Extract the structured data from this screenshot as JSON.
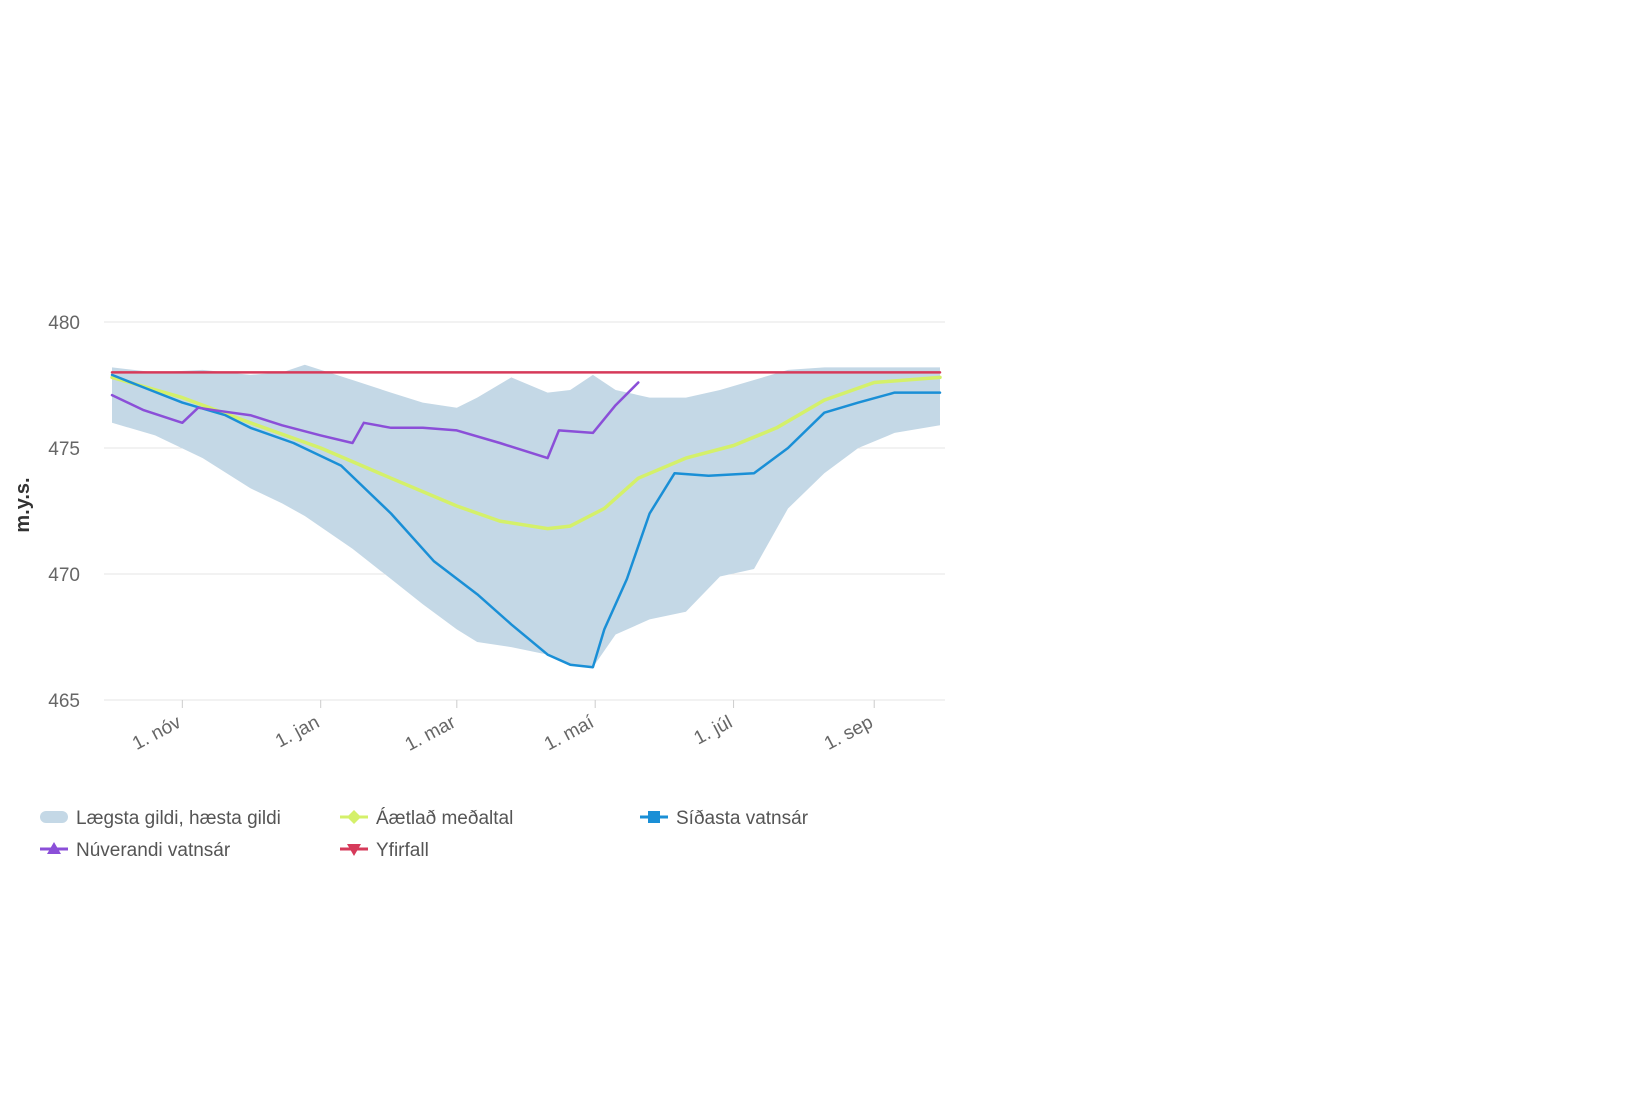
{
  "chart_data": {
    "type": "line",
    "title": "",
    "xlabel": "",
    "ylabel": "m.y.s.",
    "ylim": [
      465,
      480
    ],
    "yticks": [
      465,
      470,
      475,
      480
    ],
    "xlim": [
      "2023-10-01",
      "2024-09-30"
    ],
    "xticks": [
      {
        "date": "2023-11-01",
        "label": "1. nóv"
      },
      {
        "date": "2024-01-01",
        "label": "1. jan"
      },
      {
        "date": "2024-03-01",
        "label": "1. mar"
      },
      {
        "date": "2024-05-01",
        "label": "1. maí"
      },
      {
        "date": "2024-07-01",
        "label": "1. júl"
      },
      {
        "date": "2024-09-01",
        "label": "1. sep"
      }
    ],
    "grid": true,
    "legend_position": "bottom-left",
    "series": [
      {
        "name": "Lægsta gildi, hæsta gildi",
        "kind": "range",
        "color": "#c4d8e6",
        "x": [
          "2023-10-01",
          "2023-10-20",
          "2023-11-10",
          "2023-12-01",
          "2023-12-15",
          "2023-12-25",
          "2024-01-15",
          "2024-02-01",
          "2024-02-15",
          "2024-03-01",
          "2024-03-10",
          "2024-03-25",
          "2024-04-10",
          "2024-04-20",
          "2024-04-30",
          "2024-05-10",
          "2024-05-25",
          "2024-06-10",
          "2024-06-25",
          "2024-07-10",
          "2024-07-25",
          "2024-08-10",
          "2024-08-25",
          "2024-09-10",
          "2024-09-30"
        ],
        "low": [
          476.0,
          475.5,
          474.6,
          473.4,
          472.8,
          472.3,
          471.0,
          469.8,
          468.8,
          467.8,
          467.3,
          467.1,
          466.8,
          466.4,
          466.3,
          467.6,
          468.2,
          468.5,
          469.9,
          470.2,
          472.6,
          474.0,
          475.0,
          475.6,
          475.9
        ],
        "high": [
          478.2,
          478.0,
          478.1,
          477.9,
          478.0,
          478.3,
          477.7,
          477.2,
          476.8,
          476.6,
          477.0,
          477.8,
          477.2,
          477.3,
          477.9,
          477.3,
          477.0,
          477.0,
          477.3,
          477.7,
          478.1,
          478.2,
          478.2,
          478.2,
          478.2
        ]
      },
      {
        "name": "Áætlað meðaltal",
        "kind": "line",
        "color": "#d4f06a",
        "x": [
          "2023-10-01",
          "2023-11-01",
          "2023-12-01",
          "2024-01-01",
          "2024-02-01",
          "2024-03-01",
          "2024-03-20",
          "2024-04-10",
          "2024-04-20",
          "2024-05-05",
          "2024-05-20",
          "2024-06-10",
          "2024-07-01",
          "2024-07-20",
          "2024-08-10",
          "2024-09-01",
          "2024-09-30"
        ],
        "y": [
          477.8,
          477.0,
          476.0,
          475.0,
          473.8,
          472.7,
          472.1,
          471.8,
          471.9,
          472.6,
          473.8,
          474.6,
          475.1,
          475.8,
          476.9,
          477.6,
          477.8
        ]
      },
      {
        "name": "Síðasta vatnsár",
        "kind": "line",
        "color": "#1a8fd6",
        "x": [
          "2023-10-01",
          "2023-10-15",
          "2023-11-01",
          "2023-11-20",
          "2023-12-01",
          "2023-12-20",
          "2024-01-10",
          "2024-02-01",
          "2024-02-20",
          "2024-03-10",
          "2024-03-25",
          "2024-04-10",
          "2024-04-20",
          "2024-04-30",
          "2024-05-05",
          "2024-05-15",
          "2024-05-25",
          "2024-06-05",
          "2024-06-20",
          "2024-07-10",
          "2024-07-25",
          "2024-08-10",
          "2024-08-25",
          "2024-09-10",
          "2024-09-30"
        ],
        "y": [
          477.9,
          477.4,
          476.8,
          476.3,
          475.8,
          475.2,
          474.3,
          472.4,
          470.5,
          469.2,
          468.0,
          466.8,
          466.4,
          466.3,
          467.8,
          469.8,
          472.4,
          474.0,
          473.9,
          474.0,
          475.0,
          476.4,
          476.8,
          477.2,
          477.2
        ]
      },
      {
        "name": "Núverandi vatnsár",
        "kind": "line",
        "color": "#8b4fd8",
        "x": [
          "2023-10-01",
          "2023-10-15",
          "2023-11-01",
          "2023-11-08",
          "2023-11-15",
          "2023-12-01",
          "2023-12-15",
          "2024-01-01",
          "2024-01-15",
          "2024-01-20",
          "2024-02-01",
          "2024-02-15",
          "2024-03-01",
          "2024-03-20",
          "2024-04-10",
          "2024-04-15",
          "2024-04-30",
          "2024-05-10",
          "2024-05-20"
        ],
        "y": [
          477.1,
          476.5,
          476.0,
          476.6,
          476.5,
          476.3,
          475.9,
          475.5,
          475.2,
          476.0,
          475.8,
          475.8,
          475.7,
          475.2,
          474.6,
          475.7,
          475.6,
          476.7,
          477.6
        ]
      },
      {
        "name": "Yfirfall",
        "kind": "line",
        "color": "#d63a5a",
        "x": [
          "2023-10-01",
          "2024-09-30"
        ],
        "y": [
          478.0,
          478.0
        ]
      }
    ]
  }
}
